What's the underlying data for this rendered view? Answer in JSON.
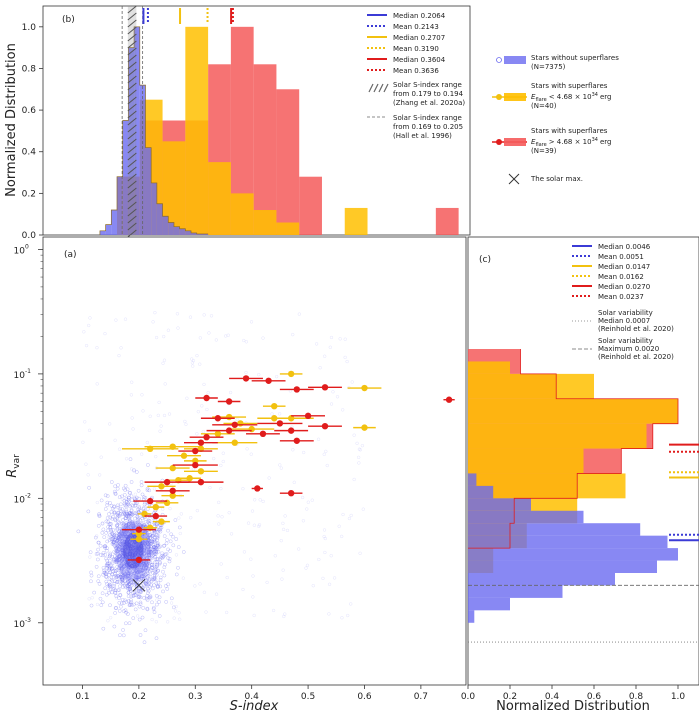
{
  "colors": {
    "blue": "#3b3bd6",
    "blue_fill": "#6a6af0",
    "yellow": "#f2c10f",
    "yellow_fill": "#ffbf00",
    "red": "#e01c1c",
    "red_fill": "#f55b5b",
    "gray": "#555555"
  },
  "chart_data": [
    {
      "id": "b",
      "type": "histogram",
      "panel_label": "(b)",
      "ylabel": "Normalized Distribution",
      "xlim": [
        0.03,
        0.78
      ],
      "ylim": [
        0.0,
        1.1
      ],
      "yticks": [
        "0.0",
        "0.2",
        "0.4",
        "0.6",
        "0.8",
        "1.0"
      ],
      "ytick_values": [
        0.0,
        0.2,
        0.4,
        0.6,
        0.8,
        1.0
      ],
      "series": [
        {
          "name": "Stars without superflares",
          "color": "blue",
          "bin_edges": [
            0.13,
            0.14,
            0.15,
            0.16,
            0.17,
            0.18,
            0.19,
            0.2,
            0.21,
            0.22,
            0.23,
            0.24,
            0.25,
            0.26,
            0.27,
            0.28,
            0.29,
            0.3,
            0.32
          ],
          "values": [
            0.02,
            0.05,
            0.12,
            0.28,
            0.55,
            0.9,
            1.0,
            0.72,
            0.42,
            0.25,
            0.15,
            0.09,
            0.06,
            0.04,
            0.03,
            0.02,
            0.01,
            0.005
          ]
        },
        {
          "name": "Stars with superflares E < 4.68e34 erg",
          "color": "yellow",
          "bin_edges": [
            0.16,
            0.2,
            0.24,
            0.28,
            0.32,
            0.36,
            0.4,
            0.44,
            0.48,
            0.52,
            0.56,
            0.6,
            0.64
          ],
          "values": [
            0.28,
            0.65,
            0.45,
            1.0,
            0.35,
            0.2,
            0.12,
            0.06,
            0.0,
            0.0,
            0.13,
            0.0
          ]
        },
        {
          "name": "Stars with superflares E > 4.68e34 erg",
          "color": "red",
          "bin_edges": [
            0.16,
            0.2,
            0.24,
            0.28,
            0.32,
            0.36,
            0.4,
            0.44,
            0.48,
            0.52,
            0.56,
            0.6,
            0.64,
            0.68,
            0.72,
            0.76
          ],
          "values": [
            0.28,
            0.55,
            0.55,
            0.55,
            0.82,
            1.0,
            0.82,
            0.7,
            0.28,
            0.0,
            0.0,
            0.0,
            0.0,
            0.0,
            0.13
          ]
        }
      ],
      "vlines": [
        {
          "x": 0.2064,
          "color": "blue",
          "style": "solid",
          "label": "Median 0.2064"
        },
        {
          "x": 0.2143,
          "color": "blue",
          "style": "dotted",
          "label": "Mean 0.2143"
        },
        {
          "x": 0.2707,
          "color": "yellow",
          "style": "solid",
          "label": "Median 0.2707"
        },
        {
          "x": 0.319,
          "color": "yellow",
          "style": "dotted",
          "label": "Mean 0.3190"
        },
        {
          "x": 0.3604,
          "color": "red",
          "style": "solid",
          "label": "Median 0.3604"
        },
        {
          "x": 0.3636,
          "color": "red",
          "style": "dotted",
          "label": "Mean 0.3636"
        }
      ],
      "solar_range_zhang": [
        0.179,
        0.194
      ],
      "solar_range_hall": [
        0.169,
        0.205
      ],
      "legend": [
        "Median 0.2064",
        "Mean 0.2143",
        "Median 0.2707",
        "Mean 0.3190",
        "Median 0.3604",
        "Mean 0.3636",
        "Solar S-index range",
        "from 0.179 to 0.194",
        "(Zhang et al. 2020a)",
        "Solar S-index range",
        "from 0.169 to 0.205",
        "(Hall et al. 1996)"
      ],
      "legend_placement": "top-right"
    },
    {
      "id": "a",
      "type": "scatter",
      "panel_label": "(a)",
      "xlabel": "S-index",
      "ylabel": "R_var",
      "ylabel_main": "R",
      "ylabel_sub": "var",
      "xlim": [
        0.03,
        0.78
      ],
      "ylim_log10": [
        -3.5,
        0.1
      ],
      "xticks": [
        "0.1",
        "0.2",
        "0.3",
        "0.4",
        "0.5",
        "0.6",
        "0.7"
      ],
      "xtick_values": [
        0.1,
        0.2,
        0.3,
        0.4,
        0.5,
        0.6,
        0.7
      ],
      "yticks": [
        "10^-3",
        "10^-2",
        "10^-1",
        "10^0"
      ],
      "ytick_exponents": [
        -3,
        -2,
        -1,
        0
      ],
      "ytick_base": "10",
      "yellow_points": [
        {
          "x": 0.2,
          "y": 0.0047,
          "xerr": 0.015
        },
        {
          "x": 0.2,
          "y": 0.0052,
          "xerr": 0.012
        },
        {
          "x": 0.22,
          "y": 0.0058,
          "xerr": 0.012
        },
        {
          "x": 0.24,
          "y": 0.0065,
          "xerr": 0.015
        },
        {
          "x": 0.21,
          "y": 0.0075,
          "xerr": 0.012
        },
        {
          "x": 0.23,
          "y": 0.0085,
          "xerr": 0.015
        },
        {
          "x": 0.25,
          "y": 0.0092,
          "xerr": 0.02
        },
        {
          "x": 0.26,
          "y": 0.0105,
          "xerr": 0.02
        },
        {
          "x": 0.24,
          "y": 0.0125,
          "xerr": 0.025
        },
        {
          "x": 0.27,
          "y": 0.014,
          "xerr": 0.02
        },
        {
          "x": 0.29,
          "y": 0.0145,
          "xerr": 0.02
        },
        {
          "x": 0.26,
          "y": 0.0175,
          "xerr": 0.03
        },
        {
          "x": 0.31,
          "y": 0.0165,
          "xerr": 0.03
        },
        {
          "x": 0.3,
          "y": 0.02,
          "xerr": 0.02
        },
        {
          "x": 0.28,
          "y": 0.022,
          "xerr": 0.03
        },
        {
          "x": 0.31,
          "y": 0.025,
          "xerr": 0.03
        },
        {
          "x": 0.26,
          "y": 0.026,
          "xerr": 0.05
        },
        {
          "x": 0.22,
          "y": 0.025,
          "xerr": 0.05
        },
        {
          "x": 0.37,
          "y": 0.028,
          "xerr": 0.04
        },
        {
          "x": 0.34,
          "y": 0.033,
          "xerr": 0.03
        },
        {
          "x": 0.4,
          "y": 0.036,
          "xerr": 0.04
        },
        {
          "x": 0.38,
          "y": 0.04,
          "xerr": 0.03
        },
        {
          "x": 0.44,
          "y": 0.044,
          "xerr": 0.03
        },
        {
          "x": 0.36,
          "y": 0.045,
          "xerr": 0.03
        },
        {
          "x": 0.47,
          "y": 0.044,
          "xerr": 0.04
        },
        {
          "x": 0.44,
          "y": 0.055,
          "xerr": 0.02
        },
        {
          "x": 0.47,
          "y": 0.1,
          "xerr": 0.02
        },
        {
          "x": 0.6,
          "y": 0.077,
          "xerr": 0.03
        },
        {
          "x": 0.6,
          "y": 0.037,
          "xerr": 0.02
        }
      ],
      "red_points": [
        {
          "x": 0.2,
          "y": 0.0032,
          "xerr": 0.02
        },
        {
          "x": 0.2,
          "y": 0.0056,
          "xerr": 0.03
        },
        {
          "x": 0.23,
          "y": 0.0072,
          "xerr": 0.02
        },
        {
          "x": 0.22,
          "y": 0.0095,
          "xerr": 0.03
        },
        {
          "x": 0.26,
          "y": 0.0115,
          "xerr": 0.03
        },
        {
          "x": 0.25,
          "y": 0.0135,
          "xerr": 0.04
        },
        {
          "x": 0.31,
          "y": 0.0135,
          "xerr": 0.04
        },
        {
          "x": 0.3,
          "y": 0.0185,
          "xerr": 0.04
        },
        {
          "x": 0.3,
          "y": 0.024,
          "xerr": 0.03
        },
        {
          "x": 0.31,
          "y": 0.028,
          "xerr": 0.03
        },
        {
          "x": 0.32,
          "y": 0.031,
          "xerr": 0.03
        },
        {
          "x": 0.36,
          "y": 0.035,
          "xerr": 0.04
        },
        {
          "x": 0.34,
          "y": 0.044,
          "xerr": 0.03
        },
        {
          "x": 0.37,
          "y": 0.039,
          "xerr": 0.04
        },
        {
          "x": 0.42,
          "y": 0.033,
          "xerr": 0.03
        },
        {
          "x": 0.45,
          "y": 0.04,
          "xerr": 0.04
        },
        {
          "x": 0.47,
          "y": 0.035,
          "xerr": 0.03
        },
        {
          "x": 0.48,
          "y": 0.029,
          "xerr": 0.03
        },
        {
          "x": 0.53,
          "y": 0.038,
          "xerr": 0.03
        },
        {
          "x": 0.5,
          "y": 0.046,
          "xerr": 0.03
        },
        {
          "x": 0.36,
          "y": 0.06,
          "xerr": 0.02
        },
        {
          "x": 0.32,
          "y": 0.064,
          "xerr": 0.02
        },
        {
          "x": 0.43,
          "y": 0.088,
          "xerr": 0.03
        },
        {
          "x": 0.39,
          "y": 0.092,
          "xerr": 0.03
        },
        {
          "x": 0.53,
          "y": 0.078,
          "xerr": 0.03
        },
        {
          "x": 0.48,
          "y": 0.075,
          "xerr": 0.03
        },
        {
          "x": 0.41,
          "y": 0.012,
          "xerr": 0.01
        },
        {
          "x": 0.47,
          "y": 0.011,
          "xerr": 0.02
        },
        {
          "x": 0.75,
          "y": 0.062,
          "xerr": 0.01
        }
      ],
      "solar_max": {
        "x": 0.2,
        "y": 0.002,
        "label": "The solar max."
      }
    },
    {
      "id": "c",
      "type": "histogram-horizontal",
      "panel_label": "(c)",
      "xlabel": "Normalized Distribution",
      "xlim": [
        0.0,
        1.1
      ],
      "xticks": [
        "0.0",
        "0.2",
        "0.4",
        "0.6",
        "0.8",
        "1.0"
      ],
      "xtick_values": [
        0.0,
        0.2,
        0.4,
        0.6,
        0.8,
        1.0
      ],
      "series": [
        {
          "name": "blue",
          "color": "blue",
          "log_edges": [
            -3.0,
            -2.9,
            -2.8,
            -2.7,
            -2.6,
            -2.5,
            -2.4,
            -2.3,
            -2.2,
            -2.1,
            -2.0,
            -1.9,
            -1.8
          ],
          "values": [
            0.03,
            0.2,
            0.45,
            0.7,
            0.9,
            1.0,
            0.95,
            0.82,
            0.55,
            0.3,
            0.12,
            0.04
          ]
        },
        {
          "name": "yellow",
          "color": "yellow",
          "log_edges": [
            -2.6,
            -2.4,
            -2.2,
            -2.0,
            -1.8,
            -1.6,
            -1.4,
            -1.2,
            -1.0,
            -0.9
          ],
          "values": [
            0.12,
            0.28,
            0.52,
            0.75,
            0.55,
            0.85,
            1.0,
            0.6,
            0.2
          ]
        },
        {
          "name": "red",
          "color": "red",
          "log_edges": [
            -2.4,
            -2.2,
            -2.0,
            -1.8,
            -1.6,
            -1.4,
            -1.2,
            -1.0,
            -0.8
          ],
          "values": [
            0.2,
            0.22,
            0.52,
            0.73,
            0.88,
            1.0,
            0.42,
            0.25
          ]
        }
      ],
      "hlines": [
        {
          "y": 0.0046,
          "color": "blue",
          "style": "solid",
          "label": "Median 0.0046"
        },
        {
          "y": 0.0051,
          "color": "blue",
          "style": "dotted",
          "label": "Mean 0.0051"
        },
        {
          "y": 0.0147,
          "color": "yellow",
          "style": "solid",
          "label": "Median 0.0147"
        },
        {
          "y": 0.0162,
          "color": "yellow",
          "style": "dotted",
          "label": "Mean 0.0162"
        },
        {
          "y": 0.027,
          "color": "red",
          "style": "solid",
          "label": "Median 0.0270"
        },
        {
          "y": 0.0237,
          "color": "red",
          "style": "dotted",
          "label": "Mean 0.0237"
        }
      ],
      "solar_var_median": 0.0007,
      "solar_var_max": 0.002,
      "legend": [
        "Median 0.0046",
        "Mean 0.0051",
        "Median 0.0147",
        "Mean 0.0162",
        "Median 0.0270",
        "Mean 0.0237",
        "Solar variability",
        "Median 0.0007",
        "(Reinhold et al. 2020)",
        "Solar variability",
        "Maximum 0.0020",
        "(Reinhold et al. 2020)"
      ],
      "legend_placement": "top-right"
    }
  ],
  "main_legend": {
    "blue_title": "Stars without superflares",
    "blue_n": "(N=7375)",
    "yellow_title": "Stars with superflares",
    "yellow_cond": "E_flare < 4.68 × 10^34 erg",
    "yellow_cond_main": "E",
    "yellow_cond_sub": "flare",
    "yellow_cond_rest": "< 4.68 × 10",
    "yellow_cond_exp": "34",
    "yellow_cond_unit": "erg",
    "yellow_n": "(N=40)",
    "red_title": "Stars with superflares",
    "red_cond": "E_flare > 4.68 × 10^34 erg",
    "red_cond_main": "E",
    "red_cond_sub": "flare",
    "red_cond_rest": "> 4.68 × 10",
    "red_cond_exp": "34",
    "red_cond_unit": "erg",
    "red_n": "(N=39)",
    "solar_max": "The solar max."
  }
}
